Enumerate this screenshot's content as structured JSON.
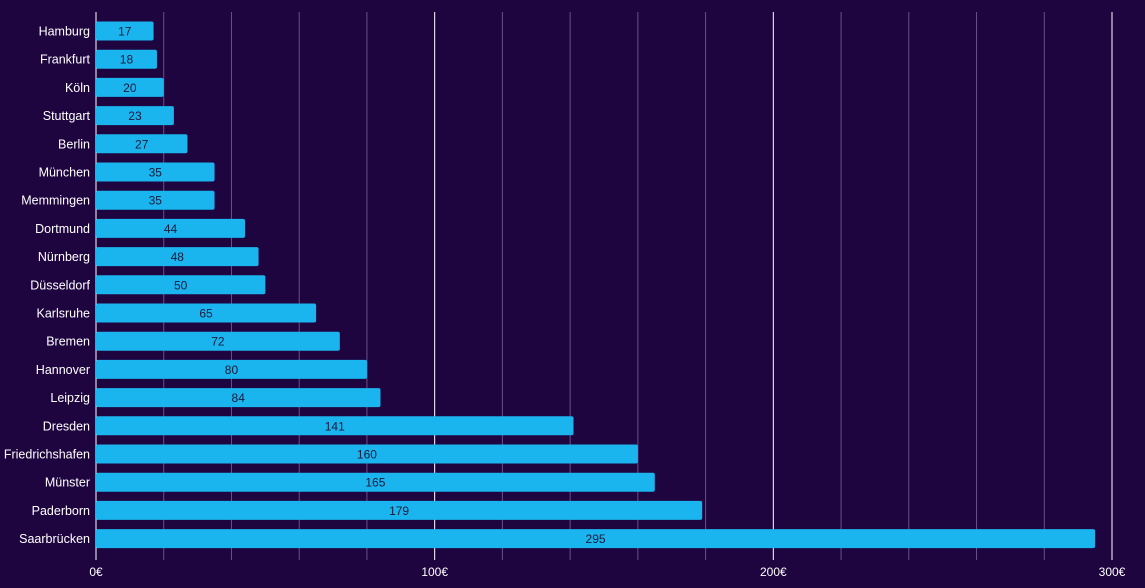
{
  "chart_data": {
    "type": "bar",
    "orientation": "horizontal",
    "categories": [
      "Hamburg",
      "Frankfurt",
      "Köln",
      "Stuttgart",
      "Berlin",
      "München",
      "Memmingen",
      "Dortmund",
      "Nürnberg",
      "Düsseldorf",
      "Karlsruhe",
      "Bremen",
      "Hannover",
      "Leipzig",
      "Dresden",
      "Friedrichshafen",
      "Münster",
      "Paderborn",
      "Saarbrücken"
    ],
    "values": [
      17,
      18,
      20,
      23,
      27,
      35,
      35,
      44,
      48,
      50,
      65,
      72,
      80,
      84,
      141,
      160,
      165,
      179,
      295
    ],
    "value_labels": [
      "17",
      "18",
      "20",
      "23",
      "27",
      "35",
      "35",
      "44",
      "48",
      "50",
      "65",
      "72",
      "80",
      "84",
      "141",
      "160",
      "165",
      "179",
      "295"
    ],
    "xlim": [
      0,
      300
    ],
    "x_ticks": [
      "0€",
      "100€",
      "200€",
      "300€"
    ],
    "grid": true,
    "colors": {
      "background": "#1f0540",
      "bar": "#1ab4ee",
      "grid_major": "#ffffff",
      "grid_minor": "#6a4f88",
      "axis_text": "#ffffff",
      "value_text": "#1a1a3a"
    }
  }
}
